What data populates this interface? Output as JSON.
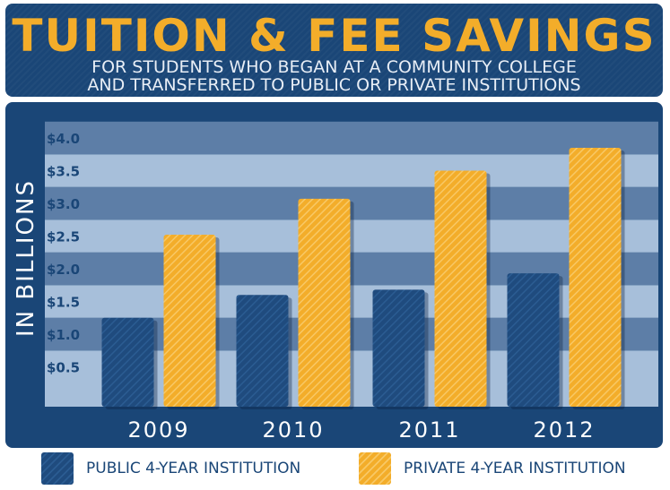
{
  "header": {
    "title": "TUITION & FEE SAVINGS",
    "subtitle_line1": "FOR STUDENTS WHO BEGAN AT A COMMUNITY COLLEGE",
    "subtitle_line2": "AND TRANSFERRED TO PUBLIC OR PRIVATE INSTITUTIONS"
  },
  "colors": {
    "navy": "#1a4677",
    "public_bar": "#1f4b7e",
    "private_bar": "#f3ad2a",
    "band_dark": "#5d7ea7",
    "band_light": "#a7bfda"
  },
  "legend": {
    "public_label": "PUBLIC 4-YEAR INSTITUTION",
    "private_label": "PRIVATE 4-YEAR INSTITUTION"
  },
  "chart_data": {
    "type": "bar",
    "title": "TUITION & FEE SAVINGS",
    "subtitle": "FOR STUDENTS WHO BEGAN AT A COMMUNITY COLLEGE AND TRANSFERRED TO PUBLIC OR PRIVATE INSTITUTIONS",
    "xlabel": "",
    "ylabel": "IN BILLIONS",
    "categories": [
      "2009",
      "2010",
      "2011",
      "2012"
    ],
    "series": [
      {
        "name": "PUBLIC 4-YEAR INSTITUTION",
        "values": [
          1.25,
          1.6,
          1.68,
          1.93
        ]
      },
      {
        "name": "PRIVATE 4-YEAR INSTITUTION",
        "values": [
          2.52,
          3.07,
          3.5,
          3.85
        ]
      }
    ],
    "ylim": [
      0,
      4.0
    ],
    "yticks": [
      0.5,
      1.0,
      1.5,
      2.0,
      2.5,
      3.0,
      3.5,
      4.0
    ],
    "ytick_labels": [
      "$0.5",
      "$1.0",
      "$1.5",
      "$2.0",
      "$2.5",
      "$3.0",
      "$3.5",
      "$4.0"
    ],
    "legend_position": "bottom",
    "grid": false
  }
}
